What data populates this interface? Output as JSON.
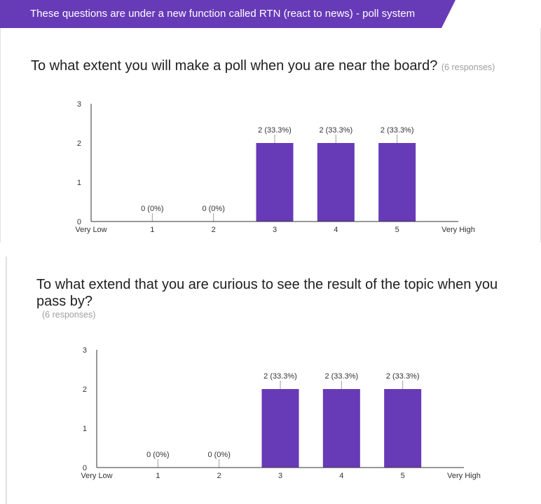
{
  "banner": {
    "text": "These questions are under a new function called RTN (react to news) - poll system",
    "color": "#673ab7"
  },
  "questions": [
    {
      "title": "To what extent you will make a poll when you are near the board?",
      "responses": "(6 responses)"
    },
    {
      "title": "To what extend that you are curious to see the result of the topic when you pass by?",
      "responses": "(6 responses)"
    }
  ],
  "chart_data": [
    {
      "type": "bar",
      "categories": [
        "1",
        "2",
        "3",
        "4",
        "5"
      ],
      "values": [
        0,
        0,
        2,
        2,
        2
      ],
      "data_labels": [
        "0 (0%)",
        "0 (0%)",
        "2 (33.3%)",
        "2 (33.3%)",
        "2 (33.3%)"
      ],
      "x_end_labels": [
        "Very Low",
        "Very High"
      ],
      "y_ticks": [
        "0",
        "1",
        "2",
        "3"
      ],
      "ylim": [
        0,
        3
      ],
      "bar_color": "#673ab7"
    },
    {
      "type": "bar",
      "categories": [
        "1",
        "2",
        "3",
        "4",
        "5"
      ],
      "values": [
        0,
        0,
        2,
        2,
        2
      ],
      "data_labels": [
        "0 (0%)",
        "0 (0%)",
        "2 (33.3%)",
        "2 (33.3%)",
        "2 (33.3%)"
      ],
      "x_end_labels": [
        "Very Low",
        "Very High"
      ],
      "y_ticks": [
        "0",
        "1",
        "2",
        "3"
      ],
      "ylim": [
        0,
        3
      ],
      "bar_color": "#673ab7"
    }
  ]
}
